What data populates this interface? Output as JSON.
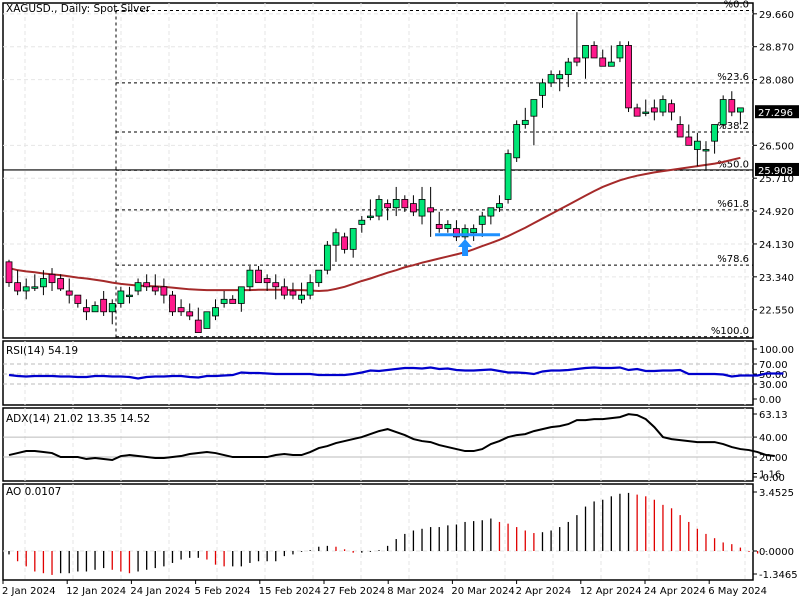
{
  "window": {
    "title": "XAGUSD., Daily:  Spot Silver"
  },
  "colors": {
    "bull": "#00e676",
    "bear": "#ff1a8c",
    "ma": "#a52a2a",
    "rsi": "#0000cc",
    "adx": "#000000",
    "ao_up": "#000000",
    "ao_down": "#e00000",
    "arrow": "#1e90ff",
    "grid": "#e6e6e6"
  },
  "price_axis": {
    "ticks": [
      "29.660",
      "28.870",
      "28.080",
      "26.500",
      "25.710",
      "24.920",
      "24.130",
      "23.340",
      "22.550"
    ],
    "current_price": "27.296",
    "hline_price": "25.908"
  },
  "fibonacci": [
    {
      "label": "%0.0",
      "price": 29.74
    },
    {
      "label": "%23.6",
      "price": 28.0
    },
    {
      "label": "%38.2",
      "price": 26.82
    },
    {
      "label": "%50.0",
      "price": 25.9
    },
    {
      "label": "%61.8",
      "price": 24.95
    },
    {
      "label": "%78.6",
      "price": 23.62
    },
    {
      "label": "%100.0",
      "price": 21.9
    }
  ],
  "rsi": {
    "label": "RSI(14) 54.19",
    "ticks": [
      "100.00",
      "70.00",
      "50.00",
      "30.00",
      "0.00"
    ]
  },
  "adx": {
    "label": "ADX(14) 21.02 13.35 14.52",
    "ticks": [
      "63.13",
      "40.00",
      "20.00",
      "1.16",
      "-0.00"
    ]
  },
  "ao": {
    "label": "AO 0.0107",
    "ticks": [
      "3.4525",
      "0.0000",
      "-1.3465"
    ]
  },
  "time_axis": {
    "labels": [
      "2 Jan 2024",
      "12 Jan 2024",
      "24 Jan 2024",
      "5 Feb 2024",
      "15 Feb 2024",
      "27 Feb 2024",
      "8 Mar 2024",
      "20 Mar 2024",
      "2 Apr 2024",
      "12 Apr 2024",
      "24 Apr 2024",
      "6 May 2024"
    ]
  },
  "chart_data": {
    "type": "candlestick",
    "title": "XAGUSD., Daily: Spot Silver",
    "xlabel": "",
    "ylabel": "Price",
    "ylim": [
      21.9,
      29.9
    ],
    "grid": true,
    "x": [
      "2 Jan 2024",
      "12 Jan 2024",
      "24 Jan 2024",
      "5 Feb 2024",
      "15 Feb 2024",
      "27 Feb 2024",
      "8 Mar 2024",
      "20 Mar 2024",
      "2 Apr 2024",
      "12 Apr 2024",
      "24 Apr 2024",
      "6 May 2024"
    ],
    "candles": [
      [
        23.7,
        23.75,
        23.1,
        23.2
      ],
      [
        23.2,
        23.5,
        22.9,
        23.0
      ],
      [
        23.0,
        23.3,
        22.8,
        23.1
      ],
      [
        23.1,
        23.4,
        23.0,
        23.1
      ],
      [
        23.1,
        23.5,
        22.9,
        23.3
      ],
      [
        23.4,
        23.55,
        23.0,
        23.2
      ],
      [
        23.3,
        23.4,
        23.0,
        23.05
      ],
      [
        23.0,
        23.3,
        22.7,
        22.9
      ],
      [
        22.9,
        22.9,
        22.6,
        22.7
      ],
      [
        22.6,
        22.8,
        22.3,
        22.5
      ],
      [
        22.5,
        22.75,
        22.5,
        22.65
      ],
      [
        22.8,
        23.0,
        22.4,
        22.5
      ],
      [
        22.5,
        22.8,
        22.2,
        22.7
      ],
      [
        22.7,
        23.1,
        22.6,
        23.0
      ],
      [
        22.9,
        23.1,
        22.7,
        22.9
      ],
      [
        23.0,
        23.3,
        22.9,
        23.2
      ],
      [
        23.2,
        23.4,
        23.0,
        23.1
      ],
      [
        23.1,
        23.4,
        22.9,
        23.0
      ],
      [
        23.1,
        23.3,
        22.7,
        22.9
      ],
      [
        22.9,
        23.0,
        22.4,
        22.5
      ],
      [
        22.6,
        22.8,
        22.4,
        22.5
      ],
      [
        22.5,
        22.7,
        22.3,
        22.4
      ],
      [
        22.3,
        22.6,
        22.0,
        22.0
      ],
      [
        22.1,
        22.5,
        22.1,
        22.5
      ],
      [
        22.4,
        22.8,
        22.3,
        22.6
      ],
      [
        22.7,
        23.0,
        22.6,
        22.8
      ],
      [
        22.8,
        22.9,
        22.7,
        22.7
      ],
      [
        22.7,
        23.1,
        22.5,
        23.1
      ],
      [
        23.1,
        23.6,
        23.0,
        23.5
      ],
      [
        23.5,
        23.6,
        23.2,
        23.2
      ],
      [
        23.3,
        23.4,
        23.0,
        23.2
      ],
      [
        23.2,
        23.4,
        22.8,
        23.1
      ],
      [
        23.1,
        23.3,
        22.8,
        22.9
      ],
      [
        23.0,
        23.2,
        22.8,
        22.9
      ],
      [
        22.8,
        23.2,
        22.7,
        22.9
      ],
      [
        22.9,
        23.4,
        22.8,
        23.2
      ],
      [
        23.2,
        23.5,
        23.1,
        23.5
      ],
      [
        23.5,
        24.2,
        23.4,
        24.1
      ],
      [
        24.1,
        24.5,
        23.7,
        24.4
      ],
      [
        24.3,
        24.4,
        23.9,
        24.0
      ],
      [
        24.0,
        24.5,
        23.8,
        24.5
      ],
      [
        24.6,
        24.8,
        24.4,
        24.7
      ],
      [
        24.8,
        25.2,
        24.7,
        24.8
      ],
      [
        24.8,
        25.3,
        24.7,
        25.2
      ],
      [
        25.1,
        25.2,
        24.7,
        25.0
      ],
      [
        25.0,
        25.5,
        24.8,
        25.2
      ],
      [
        25.2,
        25.3,
        24.9,
        25.0
      ],
      [
        25.1,
        25.3,
        24.8,
        24.9
      ],
      [
        24.8,
        25.5,
        24.6,
        25.2
      ],
      [
        25.0,
        25.5,
        24.3,
        24.9
      ],
      [
        24.6,
        24.9,
        24.4,
        24.5
      ],
      [
        24.5,
        24.7,
        24.4,
        24.6
      ],
      [
        24.5,
        24.7,
        24.2,
        24.3
      ],
      [
        24.3,
        24.6,
        24.2,
        24.5
      ],
      [
        24.4,
        24.6,
        24.2,
        24.5
      ],
      [
        24.6,
        24.9,
        24.3,
        24.8
      ],
      [
        24.8,
        25.0,
        24.6,
        25.0
      ],
      [
        25.0,
        25.3,
        24.9,
        25.1
      ],
      [
        25.2,
        26.4,
        25.1,
        26.3
      ],
      [
        26.2,
        27.1,
        26.1,
        27.0
      ],
      [
        27.0,
        27.4,
        26.9,
        27.1
      ],
      [
        27.2,
        27.6,
        26.5,
        27.6
      ],
      [
        27.7,
        28.1,
        27.4,
        28.0
      ],
      [
        28.0,
        28.3,
        27.9,
        28.2
      ],
      [
        28.1,
        28.3,
        27.8,
        28.2
      ],
      [
        28.2,
        28.6,
        27.9,
        28.5
      ],
      [
        28.6,
        29.7,
        28.4,
        28.5
      ],
      [
        28.6,
        28.9,
        28.1,
        28.9
      ],
      [
        28.9,
        29.0,
        28.6,
        28.6
      ],
      [
        28.6,
        28.8,
        28.4,
        28.4
      ],
      [
        28.4,
        28.9,
        28.4,
        28.5
      ],
      [
        28.6,
        29.0,
        28.5,
        28.9
      ],
      [
        28.9,
        29.0,
        27.3,
        27.4
      ],
      [
        27.4,
        27.5,
        27.3,
        27.2
      ],
      [
        27.3,
        27.6,
        27.2,
        27.3
      ],
      [
        27.4,
        27.6,
        27.1,
        27.3
      ],
      [
        27.3,
        27.7,
        27.2,
        27.6
      ],
      [
        27.5,
        27.6,
        27.1,
        27.3
      ],
      [
        27.0,
        27.2,
        26.9,
        26.7
      ],
      [
        26.7,
        27.0,
        26.5,
        26.5
      ],
      [
        26.4,
        26.8,
        26.0,
        26.6
      ],
      [
        26.4,
        26.6,
        25.9,
        26.4
      ],
      [
        26.6,
        26.9,
        26.3,
        27.0
      ],
      [
        27.0,
        27.7,
        26.9,
        27.6
      ],
      [
        27.6,
        27.8,
        27.2,
        27.3
      ],
      [
        27.3,
        27.4,
        27.0,
        27.4
      ]
    ],
    "ma_line": [
      23.55,
      23.5,
      23.47,
      23.45,
      23.42,
      23.4,
      23.38,
      23.35,
      23.32,
      23.3,
      23.27,
      23.24,
      23.2,
      23.17,
      23.15,
      23.13,
      23.12,
      23.11,
      23.1,
      23.08,
      23.06,
      23.04,
      23.03,
      23.02,
      23.02,
      23.02,
      23.02,
      23.02,
      23.02,
      23.03,
      23.03,
      23.03,
      23.03,
      23.02,
      23.02,
      23.01,
      23.0,
      23.01,
      23.05,
      23.1,
      23.17,
      23.24,
      23.3,
      23.37,
      23.44,
      23.5,
      23.57,
      23.62,
      23.68,
      23.73,
      23.78,
      23.83,
      23.88,
      23.93,
      24.0,
      24.08,
      24.15,
      24.23,
      24.32,
      24.42,
      24.52,
      24.63,
      24.74,
      24.85,
      24.96,
      25.07,
      25.18,
      25.29,
      25.4,
      25.5,
      25.58,
      25.66,
      25.72,
      25.77,
      25.81,
      25.85,
      25.88,
      25.91,
      25.94,
      25.97,
      26.0,
      26.03,
      26.06,
      26.1,
      26.15,
      26.2
    ],
    "rsi_values": [
      48,
      46,
      45,
      46,
      46,
      46,
      45,
      45,
      44,
      44,
      46,
      46,
      45,
      45,
      44,
      41,
      44,
      45,
      45,
      46,
      46,
      44,
      43,
      46,
      46,
      47,
      48,
      53,
      52,
      52,
      51,
      50,
      50,
      50,
      50,
      50,
      48,
      48,
      48,
      48,
      50,
      53,
      57,
      56,
      58,
      60,
      62,
      62,
      61,
      63,
      60,
      61,
      58,
      57,
      57,
      58,
      59,
      56,
      53,
      53,
      52,
      50,
      55,
      57,
      57,
      58,
      60,
      62,
      63,
      62,
      62,
      63,
      58,
      60,
      56,
      56,
      57,
      57,
      58,
      50,
      50,
      50,
      50,
      49,
      45,
      47,
      47,
      47,
      51,
      51,
      51
    ],
    "adx_values": [
      22,
      24,
      26,
      26,
      25,
      24,
      20,
      20,
      20,
      18,
      19,
      18,
      17,
      21,
      22,
      21,
      20,
      19,
      19,
      20,
      21,
      23,
      24,
      25,
      24,
      22,
      20,
      20,
      20,
      20,
      20,
      22,
      23,
      22,
      22,
      25,
      29,
      31,
      34,
      36,
      38,
      40,
      43,
      46,
      48,
      45,
      42,
      38,
      36,
      35,
      32,
      30,
      28,
      26,
      26,
      28,
      33,
      36,
      40,
      42,
      43,
      46,
      48,
      50,
      51,
      53,
      57,
      57,
      58,
      58,
      59,
      60,
      63,
      62,
      58,
      50,
      40,
      38,
      37,
      36,
      35,
      35,
      35,
      33,
      30,
      28,
      27,
      25,
      22,
      21
    ],
    "ao_values": [
      -0.2,
      -0.6,
      -0.9,
      -1.2,
      -1.3,
      -1.4,
      -1.3,
      -1.3,
      -1.2,
      -1.2,
      -1.1,
      -1.0,
      -1.1,
      -1.2,
      -1.3,
      -1.2,
      -1.1,
      -1.0,
      -0.9,
      -0.7,
      -0.5,
      -0.4,
      -0.4,
      -0.5,
      -0.8,
      -0.9,
      -0.9,
      -0.9,
      -0.7,
      -0.6,
      -0.6,
      -0.6,
      -0.3,
      -0.2,
      -0.05,
      0.05,
      0.25,
      0.3,
      0.25,
      0.1,
      -0.1,
      -0.1,
      -0.05,
      0.05,
      0.3,
      0.7,
      1.0,
      1.2,
      1.3,
      1.4,
      1.4,
      1.5,
      1.55,
      1.7,
      1.75,
      1.8,
      1.9,
      1.7,
      1.6,
      1.4,
      1.2,
      1.05,
      1.1,
      1.2,
      1.4,
      1.7,
      2.1,
      2.6,
      2.9,
      3.0,
      3.2,
      3.35,
      3.4,
      3.3,
      3.2,
      3.0,
      2.7,
      2.5,
      2.1,
      1.7,
      1.3,
      1.0,
      0.75,
      0.5,
      0.4,
      0.2,
      -0.05,
      -0.15,
      -0.05
    ],
    "annotations": [
      "Fibonacci retracement levels",
      "Buy arrow near 24.3 support",
      "Horizontal line at 25.908"
    ]
  }
}
